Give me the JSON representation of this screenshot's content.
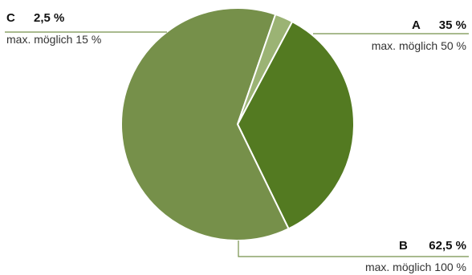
{
  "chart_data": {
    "type": "pie",
    "slices": [
      {
        "name": "A",
        "value": 35,
        "value_label": "35 %",
        "note": "max. möglich 50 %",
        "color": "#537a21"
      },
      {
        "name": "B",
        "value": 62.5,
        "value_label": "62,5 %",
        "note": "max. möglich 100 %",
        "color": "#76904a"
      },
      {
        "name": "C",
        "value": 2.5,
        "value_label": "2,5 %",
        "note": "max. möglich 15 %",
        "color": "#9bb374"
      }
    ],
    "leader_line_color": "#76904a",
    "slice_border_color": "#ffffff"
  }
}
